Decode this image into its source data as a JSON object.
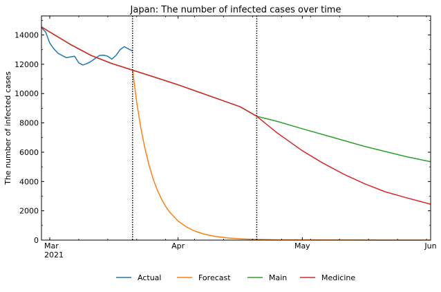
{
  "chart_data": {
    "type": "line",
    "title": "Japan: The number of infected cases over time",
    "xlabel": "",
    "ylabel": "The number of infected cases",
    "xlim": [
      "2021-02-27",
      "2021-06-01"
    ],
    "ylim": [
      0,
      15300
    ],
    "grid": false,
    "legend_position": "bottom-center",
    "x_ticks": [
      {
        "date": "2021-03-01",
        "label": "Mar",
        "sublabel": "2021"
      },
      {
        "date": "2021-04-01",
        "label": "Apr"
      },
      {
        "date": "2021-05-01",
        "label": "May"
      },
      {
        "date": "2021-06-01",
        "label": "Jun"
      }
    ],
    "y_ticks": [
      0,
      2000,
      4000,
      6000,
      8000,
      10000,
      12000,
      14000
    ],
    "vlines": [
      "2021-03-21",
      "2021-04-20"
    ],
    "series": [
      {
        "name": "Actual",
        "color": "#1f77b4",
        "x": [
          "2021-02-27",
          "2021-02-28",
          "2021-03-01",
          "2021-03-02",
          "2021-03-03",
          "2021-03-04",
          "2021-03-05",
          "2021-03-06",
          "2021-03-07",
          "2021-03-08",
          "2021-03-09",
          "2021-03-10",
          "2021-03-11",
          "2021-03-12",
          "2021-03-13",
          "2021-03-14",
          "2021-03-15",
          "2021-03-16",
          "2021-03-17",
          "2021-03-18",
          "2021-03-19",
          "2021-03-20",
          "2021-03-21"
        ],
        "y": [
          14500,
          14200,
          13450,
          13050,
          12750,
          12600,
          12450,
          12500,
          12550,
          12100,
          11950,
          12050,
          12200,
          12400,
          12600,
          12620,
          12550,
          12350,
          12600,
          13000,
          13200,
          13050,
          12900
        ]
      },
      {
        "name": "Forecast",
        "color": "#ff7f0e",
        "x": [
          "2021-02-27",
          "2021-03-01",
          "2021-03-06",
          "2021-03-11",
          "2021-03-16",
          "2021-03-21",
          "2021-03-22",
          "2021-03-23",
          "2021-03-24",
          "2021-03-25",
          "2021-03-26",
          "2021-03-27",
          "2021-03-28",
          "2021-03-29",
          "2021-03-30",
          "2021-04-01",
          "2021-04-03",
          "2021-04-05",
          "2021-04-07",
          "2021-04-10",
          "2021-04-13",
          "2021-04-16",
          "2021-04-20",
          "2021-04-25",
          "2021-05-01",
          "2021-05-10",
          "2021-05-20",
          "2021-06-01"
        ],
        "y": [
          14550,
          14200,
          13350,
          12600,
          12050,
          11600,
          9400,
          7650,
          6250,
          5100,
          4150,
          3400,
          2800,
          2300,
          1900,
          1300,
          900,
          620,
          430,
          250,
          150,
          90,
          50,
          20,
          10,
          4,
          2,
          1
        ]
      },
      {
        "name": "Main",
        "color": "#2ca02c",
        "x": [
          "2021-02-27",
          "2021-03-01",
          "2021-03-06",
          "2021-03-11",
          "2021-03-16",
          "2021-03-21",
          "2021-03-26",
          "2021-04-01",
          "2021-04-06",
          "2021-04-11",
          "2021-04-16",
          "2021-04-20",
          "2021-04-25",
          "2021-05-01",
          "2021-05-06",
          "2021-05-11",
          "2021-05-16",
          "2021-05-21",
          "2021-05-26",
          "2021-06-01"
        ],
        "y": [
          14550,
          14200,
          13350,
          12600,
          12050,
          11600,
          11150,
          10600,
          10100,
          9600,
          9100,
          8450,
          8100,
          7600,
          7200,
          6800,
          6400,
          6050,
          5700,
          5350
        ]
      },
      {
        "name": "Medicine",
        "color": "#d62728",
        "x": [
          "2021-02-27",
          "2021-03-01",
          "2021-03-06",
          "2021-03-11",
          "2021-03-16",
          "2021-03-21",
          "2021-03-26",
          "2021-04-01",
          "2021-04-06",
          "2021-04-11",
          "2021-04-16",
          "2021-04-20",
          "2021-04-25",
          "2021-05-01",
          "2021-05-06",
          "2021-05-11",
          "2021-05-16",
          "2021-05-21",
          "2021-05-26",
          "2021-06-01"
        ],
        "y": [
          14550,
          14200,
          13350,
          12600,
          12050,
          11600,
          11150,
          10600,
          10100,
          9600,
          9100,
          8450,
          7300,
          6100,
          5250,
          4500,
          3850,
          3300,
          2900,
          2450
        ]
      }
    ]
  }
}
